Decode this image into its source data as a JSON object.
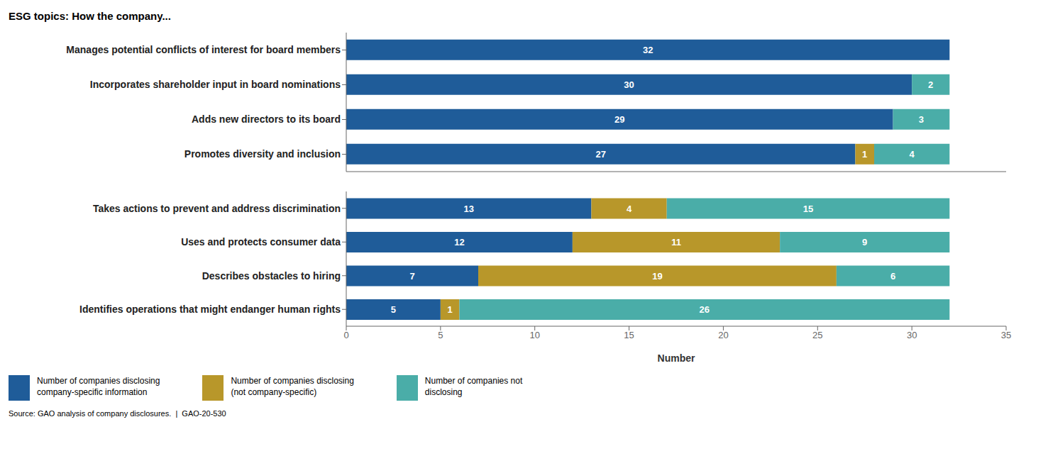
{
  "chart_data": [
    {
      "type": "bar",
      "orientation": "horizontal",
      "stacked": true,
      "data_labels": true,
      "tick_labels": "y",
      "title": "ESG topics: How the company...",
      "categories": [
        "Manages potential conflicts of interest for board members",
        "Incorporates shareholder input in board nominations",
        "Adds new directors to its board",
        "Promotes diversity and inclusion"
      ],
      "series": [
        {
          "name": "Number of companies disclosing\ncompany-specific information",
          "color": "#1F5C99",
          "values": [
            32,
            30,
            29,
            27
          ]
        },
        {
          "name": "Number of companies disclosing\n(not company-specific)",
          "color": "#B8972A",
          "values": [
            0,
            0,
            0,
            1
          ]
        },
        {
          "name": "Number of companies not\ndisclosing",
          "color": "#4AADA8",
          "values": [
            0,
            2,
            3,
            4
          ]
        }
      ],
      "xlim": [
        0,
        35
      ]
    },
    {
      "type": "bar",
      "orientation": "horizontal",
      "stacked": true,
      "data_labels": true,
      "categories": [
        "Takes actions to prevent and address discrimination",
        "Uses and protects consumer data",
        "Describes obstacles to hiring",
        "Identifies operations that might endanger human rights"
      ],
      "series": [
        {
          "name": "Number of companies disclosing\ncompany-specific information",
          "color": "#1F5C99",
          "values": [
            13,
            12,
            7,
            5
          ]
        },
        {
          "name": "Number of companies disclosing\n(not company-specific)",
          "color": "#B8972A",
          "values": [
            4,
            11,
            19,
            1
          ]
        },
        {
          "name": "Number of companies not\ndisclosing",
          "color": "#4AADA8",
          "values": [
            15,
            9,
            6,
            26
          ]
        }
      ],
      "xlim": [
        0,
        35
      ],
      "xticks": [
        0,
        5,
        10,
        15,
        20,
        25,
        30,
        35
      ],
      "xlabel": "Number",
      "annotations": [
        "Source: GAO analysis of company disclosures.  |  GAO-20-530"
      ]
    }
  ]
}
